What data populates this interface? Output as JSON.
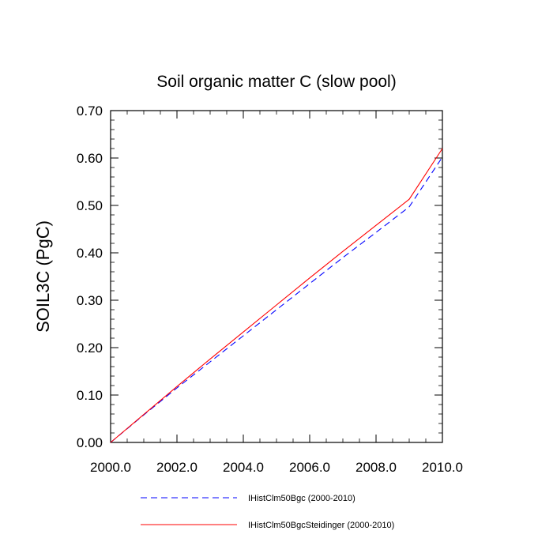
{
  "chart_data": {
    "type": "line",
    "title": "Soil organic matter C (slow pool)",
    "xlabel": "",
    "ylabel": "SOIL3C  (PgC)",
    "xlim": [
      2000.0,
      2010.0
    ],
    "ylim": [
      0.0,
      0.7
    ],
    "x_ticks": [
      "2000.0",
      "2002.0",
      "2004.0",
      "2006.0",
      "2008.0",
      "2010.0"
    ],
    "y_ticks": [
      "0.00",
      "0.10",
      "0.20",
      "0.30",
      "0.40",
      "0.50",
      "0.60",
      "0.70"
    ],
    "grid": false,
    "legend_position": "bottom",
    "series": [
      {
        "name": "IHistClm50Bgc (2000-2010)",
        "color": "#0000ff",
        "dash": "dashed",
        "x": [
          2000,
          2001,
          2002,
          2003,
          2004,
          2005,
          2006,
          2007,
          2008,
          2009,
          2010
        ],
        "y": [
          0.0,
          0.058,
          0.115,
          0.17,
          0.225,
          0.28,
          0.335,
          0.39,
          0.443,
          0.497,
          0.602
        ]
      },
      {
        "name": "IHistClm50BgcSteidinger (2000-2010)",
        "color": "#ff0000",
        "dash": "solid",
        "x": [
          2000,
          2001,
          2002,
          2003,
          2004,
          2005,
          2006,
          2007,
          2008,
          2009,
          2010
        ],
        "y": [
          0.0,
          0.059,
          0.118,
          0.176,
          0.233,
          0.29,
          0.347,
          0.403,
          0.458,
          0.513,
          0.62
        ]
      }
    ]
  }
}
